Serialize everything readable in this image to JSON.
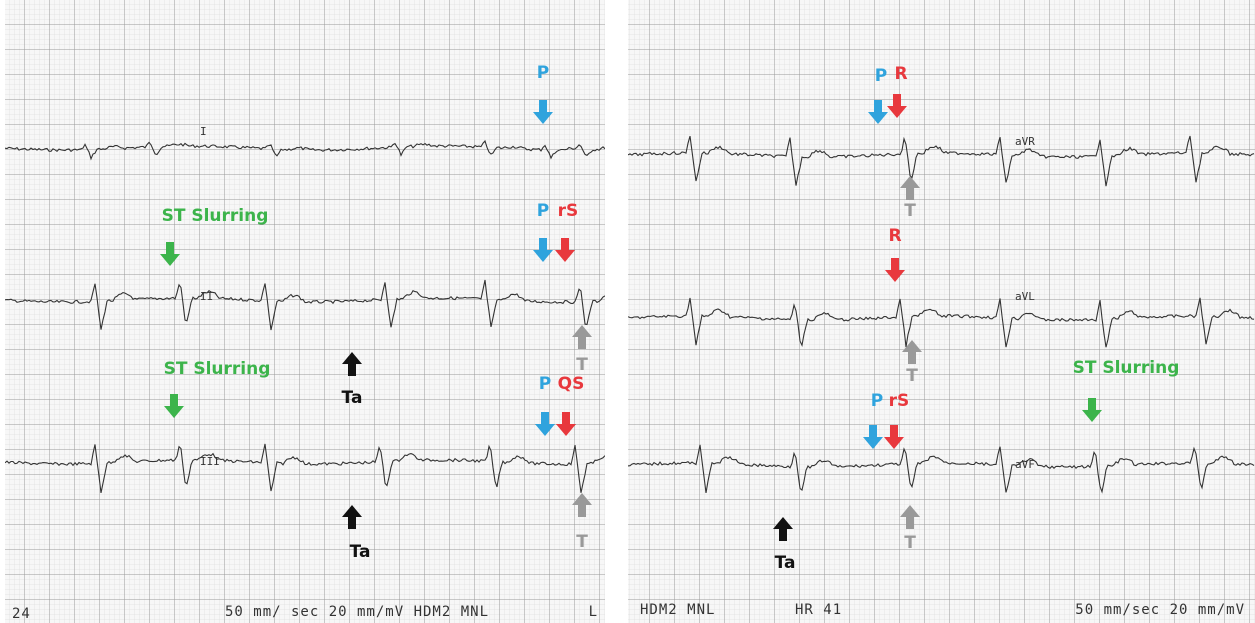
{
  "panels": [
    {
      "leads": [
        {
          "label": "I"
        },
        {
          "label": "II"
        },
        {
          "label": "III"
        }
      ],
      "annotations": [
        {
          "label": "P",
          "color": "#2fa3dd"
        },
        {
          "label": "P",
          "color": "#2fa3dd"
        },
        {
          "label": "rS",
          "color": "#e8383d"
        },
        {
          "label": "T",
          "color": "#999999"
        },
        {
          "label": "ST Slurring",
          "color": "#3cb44b"
        },
        {
          "label": "Ta",
          "color": "#111111"
        },
        {
          "label": "ST Slurring",
          "color": "#3cb44b"
        },
        {
          "label": "P",
          "color": "#2fa3dd"
        },
        {
          "label": "QS",
          "color": "#e8383d"
        },
        {
          "label": "Ta",
          "color": "#111111"
        },
        {
          "label": "T",
          "color": "#999999"
        }
      ],
      "footer": [
        "24",
        "50 mm/ sec 20 mm/mV HDM2 MNL",
        "L"
      ]
    },
    {
      "leads": [
        {
          "label": "aVR"
        },
        {
          "label": "aVL"
        },
        {
          "label": "aVF"
        }
      ],
      "annotations": [
        {
          "label": "P",
          "color": "#2fa3dd"
        },
        {
          "label": "R",
          "color": "#e8383d"
        },
        {
          "label": "T",
          "color": "#999999"
        },
        {
          "label": "R",
          "color": "#e8383d"
        },
        {
          "label": "T",
          "color": "#999999"
        },
        {
          "label": "P",
          "color": "#2fa3dd"
        },
        {
          "label": "rS",
          "color": "#e8383d"
        },
        {
          "label": "T",
          "color": "#999999"
        },
        {
          "label": "ST Slurring",
          "color": "#3cb44b"
        },
        {
          "label": "Ta",
          "color": "#111111"
        }
      ],
      "footer": [
        "HDM2 MNL",
        "HR 41",
        "50 mm/sec 20 mm/mV"
      ]
    }
  ]
}
